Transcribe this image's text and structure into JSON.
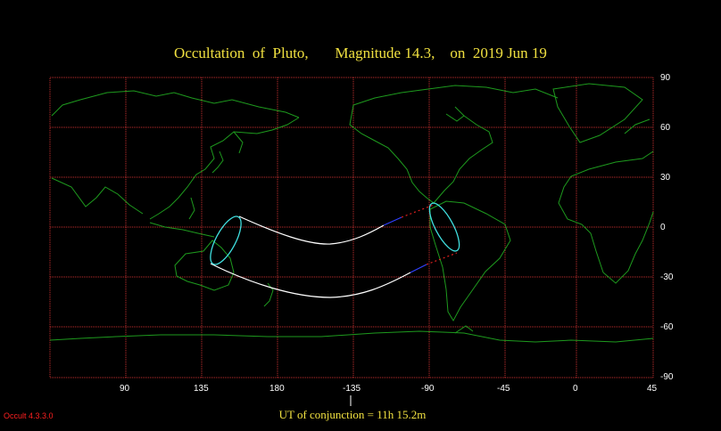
{
  "header": {
    "title": "Occultation  of  Pluto,       Magnitude 14.3,    on  2019 Jun 19"
  },
  "map": {
    "lon_tick_labels": [
      "90",
      "135",
      "180",
      "-135",
      "-90",
      "-45",
      "0",
      "45"
    ],
    "lat_tick_labels": [
      "90",
      "60",
      "30",
      "0",
      "-30",
      "-60",
      "-90"
    ],
    "colors": {
      "grid": "#c83030",
      "coast": "#1e9a1e",
      "path": "#ffffff",
      "ellipse": "#40e0e0",
      "daylight": "#3040ff",
      "night": "#e02020"
    }
  },
  "footer": {
    "conjunction": "UT of conjunction = 11h 15.2m",
    "version": "Occult 4.3.3.0"
  }
}
